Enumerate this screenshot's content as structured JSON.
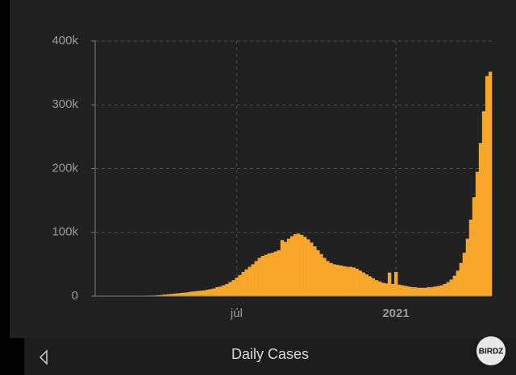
{
  "chart_data": {
    "type": "bar",
    "categories": [
      null,
      null,
      null,
      null,
      null,
      null,
      null,
      null,
      null,
      null,
      null,
      null,
      null,
      null,
      null,
      null,
      null,
      null,
      null,
      null,
      null,
      null,
      null,
      null,
      null,
      null,
      null,
      null,
      null,
      null,
      null,
      null,
      null,
      null,
      null,
      null,
      null,
      null,
      null,
      null,
      null,
      null,
      null,
      "júl",
      null,
      null,
      null,
      null,
      null,
      null,
      null,
      null,
      null,
      null,
      null,
      null,
      null,
      null,
      null,
      null,
      null,
      null,
      null,
      null,
      null,
      null,
      null,
      null,
      null,
      null,
      null,
      null,
      null,
      null,
      null,
      null,
      null,
      null,
      null,
      null,
      null,
      null,
      null,
      null,
      null,
      null,
      null,
      null,
      null,
      null,
      null,
      null,
      "2021",
      null,
      null,
      null,
      null,
      null,
      null,
      null,
      null,
      null,
      null,
      null,
      null,
      null,
      null,
      null,
      null,
      null,
      null,
      null,
      null,
      null,
      null,
      null,
      null,
      null,
      null,
      null,
      null,
      null
    ],
    "values": [
      0,
      0,
      0,
      0,
      0,
      0,
      0,
      0,
      0,
      0,
      200,
      300,
      400,
      500,
      600,
      700,
      800,
      900,
      1000,
      1500,
      2000,
      2500,
      3000,
      3500,
      4000,
      4500,
      5000,
      5500,
      6000,
      7000,
      7500,
      8000,
      8500,
      9000,
      10000,
      11000,
      12000,
      14000,
      15000,
      17000,
      19000,
      22000,
      25000,
      29000,
      33000,
      38000,
      42000,
      46000,
      50000,
      55000,
      60000,
      63000,
      65000,
      67000,
      68000,
      70000,
      72000,
      88000,
      85000,
      90000,
      94000,
      97000,
      98000,
      96000,
      93000,
      89000,
      84000,
      78000,
      72000,
      66000,
      60000,
      55000,
      52000,
      50000,
      49000,
      48000,
      47000,
      46000,
      46000,
      45000,
      43000,
      40000,
      37000,
      34000,
      31000,
      28000,
      25000,
      23000,
      21000,
      20000,
      37000,
      19000,
      38000,
      18000,
      17000,
      16000,
      15000,
      14000,
      14000,
      13000,
      13000,
      13000,
      14000,
      14000,
      15000,
      16000,
      17000,
      19000,
      22000,
      26000,
      32000,
      40000,
      52000,
      68000,
      90000,
      120000,
      155000,
      195000,
      240000,
      290000,
      345000,
      352000
    ],
    "color": "#f9a72b",
    "ylim": [
      0,
      400000
    ],
    "yticks": [
      0,
      {
        "value": 100000,
        "label": "100k"
      },
      {
        "value": 200000,
        "label": "200k"
      },
      {
        "value": 300000,
        "label": "300k"
      },
      {
        "value": 400000,
        "label": "400k"
      }
    ],
    "grid": true
  },
  "tab_bar": {
    "title": "Daily Cases",
    "watermark": "BIRDZ"
  }
}
